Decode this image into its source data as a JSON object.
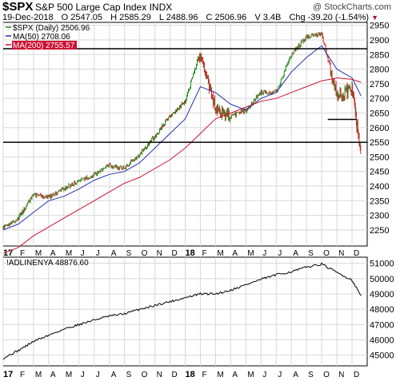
{
  "header": {
    "ticker": "$SPX",
    "name": "S&P 500 Large Cap Index",
    "exchange": "INDX",
    "copyright": "@ StockCharts.com",
    "date": "19-Dec-2018",
    "open": "O 2547.05",
    "high": "H 2585.29",
    "low": "L 2488.96",
    "close": "C 2506.96",
    "volume": "V 3.4B",
    "change": "Chg -39.20 (-1.54%)",
    "change_icon": "down-triangle-icon"
  },
  "colors": {
    "price": "#1a8a1a",
    "price_down": "#cc2222",
    "ma50": "#2233aa",
    "ma200": "#cc1133",
    "adline": "#000000",
    "grid": "#d8d8d8",
    "hlines": "#000000"
  },
  "chart_data": [
    {
      "type": "line",
      "panel": "price",
      "legend": [
        {
          "label": "$SPX (Daily) 2506.96",
          "color": "#1a8a1a"
        },
        {
          "label": "MA(50) 2708.06",
          "color": "#2233aa"
        },
        {
          "label": "MA(200) 2755.57",
          "color": "#cc1133"
        }
      ],
      "ylim": [
        2195,
        2960
      ],
      "yticks": [
        2250,
        2300,
        2350,
        2400,
        2450,
        2500,
        2550,
        2600,
        2650,
        2700,
        2750,
        2800,
        2850,
        2900,
        2950
      ],
      "x_labels": [
        "17",
        "F",
        "M",
        "A",
        "M",
        "J",
        "J",
        "A",
        "S",
        "O",
        "N",
        "D",
        "18",
        "F",
        "M",
        "A",
        "M",
        "J",
        "J",
        "A",
        "S",
        "O",
        "N",
        "D"
      ],
      "x": [
        0,
        1,
        2,
        3,
        4,
        5,
        6,
        7,
        8,
        9,
        10,
        11,
        12,
        13,
        14,
        15,
        16,
        17,
        18,
        19,
        20,
        21,
        22,
        23,
        23.6
      ],
      "series": [
        {
          "name": "$SPX (Daily) 2506.96",
          "values": [
            2260,
            2290,
            2370,
            2360,
            2390,
            2420,
            2440,
            2470,
            2460,
            2510,
            2570,
            2640,
            2690,
            2860,
            2660,
            2640,
            2660,
            2720,
            2720,
            2850,
            2910,
            2920,
            2710,
            2730,
            2507
          ]
        },
        {
          "name": "MA(50) 2708.06",
          "values": [
            2250,
            2270,
            2310,
            2350,
            2365,
            2390,
            2420,
            2440,
            2450,
            2480,
            2530,
            2580,
            2630,
            2740,
            2720,
            2680,
            2660,
            2700,
            2720,
            2790,
            2840,
            2880,
            2800,
            2770,
            2708
          ]
        },
        {
          "name": "MA(200) 2755.57",
          "values": [
            2170,
            2190,
            2230,
            2260,
            2290,
            2320,
            2350,
            2380,
            2410,
            2430,
            2460,
            2490,
            2530,
            2580,
            2630,
            2650,
            2670,
            2690,
            2700,
            2720,
            2740,
            2760,
            2770,
            2765,
            2755
          ]
        }
      ],
      "hlines": [
        2870,
        2630,
        2550
      ],
      "hline_short": {
        "y": 2628,
        "x_from": 21.4,
        "x_to": 23.3
      }
    },
    {
      "type": "line",
      "panel": "adline",
      "legend": [
        {
          "label": "!ADLINENYA 48876.60",
          "color": "#000000"
        }
      ],
      "ylim": [
        44300,
        51400
      ],
      "yticks": [
        45000,
        46000,
        47000,
        48000,
        49000,
        50000,
        51000
      ],
      "x_labels": [
        "17",
        "F",
        "M",
        "A",
        "M",
        "J",
        "J",
        "A",
        "S",
        "O",
        "N",
        "D",
        "18",
        "F",
        "M",
        "A",
        "M",
        "J",
        "J",
        "A",
        "S",
        "O",
        "N",
        "D"
      ],
      "x": [
        0,
        1,
        2,
        3,
        4,
        5,
        6,
        7,
        8,
        9,
        10,
        11,
        12,
        13,
        14,
        15,
        16,
        17,
        18,
        19,
        20,
        21,
        22,
        23,
        23.6
      ],
      "series": [
        {
          "name": "!ADLINENYA 48876.60",
          "values": [
            44800,
            45300,
            45900,
            46300,
            46700,
            47000,
            47300,
            47550,
            47700,
            48000,
            48250,
            48500,
            48750,
            49000,
            49000,
            49250,
            49600,
            49950,
            50250,
            50450,
            50750,
            50950,
            50400,
            49900,
            48877
          ]
        }
      ]
    }
  ]
}
